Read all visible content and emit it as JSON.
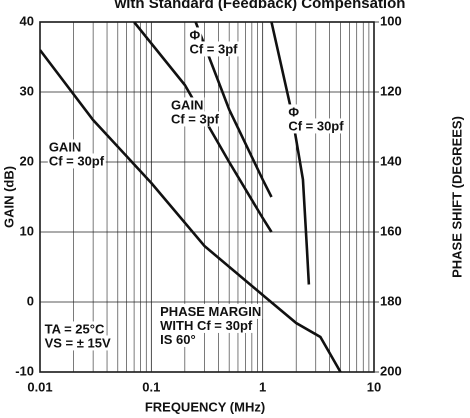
{
  "chart_data": {
    "type": "line",
    "title": "with Standard (Feedback) Compensation",
    "x_label": "FREQUENCY (MHz)",
    "y_label": "GAIN (dB)",
    "y2_label": "PHASE SHIFT (DEGREES)",
    "log_x": true,
    "grid": true,
    "xlim": [
      0.01,
      10
    ],
    "xticks": [
      0.01,
      0.1,
      1,
      10
    ],
    "xminor_ticks": [
      0.02,
      0.03,
      0.04,
      0.05,
      0.06,
      0.07,
      0.08,
      0.09,
      0.2,
      0.3,
      0.4,
      0.5,
      0.6,
      0.7,
      0.8,
      0.9,
      2,
      3,
      4,
      5,
      6,
      7,
      8,
      9
    ],
    "ylim": [
      -10,
      40
    ],
    "yticks": [
      -10,
      0,
      10,
      20,
      30,
      40
    ],
    "y2lim": [
      200,
      100
    ],
    "y2ticks": [
      100,
      120,
      140,
      160,
      180,
      200
    ],
    "series": [
      {
        "name": "GAIN Cf = 30pf",
        "color": "#111111",
        "x": [
          0.01,
          0.03,
          0.1,
          0.3,
          1,
          2,
          3.3,
          5
        ],
        "values": [
          36,
          26,
          17,
          8,
          1,
          -3,
          -5,
          -10
        ]
      },
      {
        "name": "GAIN Cf = 3pf",
        "color": "#111111",
        "x": [
          0.07,
          0.2,
          0.5,
          1,
          1.2
        ],
        "values": [
          40,
          31,
          20,
          12,
          10
        ]
      },
      {
        "name": "Φ Cf = 3pf",
        "color": "#111111",
        "axis": "y2",
        "x": [
          0.25,
          0.5,
          1,
          1.2
        ],
        "values": [
          100,
          125,
          145,
          150
        ]
      },
      {
        "name": "Φ Cf = 30pf",
        "color": "#111111",
        "axis": "y2",
        "x": [
          1.2,
          1.8,
          2.3,
          2.5,
          2.6
        ],
        "values": [
          100,
          125,
          145,
          165,
          175
        ]
      }
    ],
    "annotations": [
      {
        "lines": [
          "GAIN",
          "Cf = 30pf"
        ],
        "x": 0.012,
        "y": 22
      },
      {
        "lines": [
          "GAIN",
          "Cf = 3pf"
        ],
        "x": 0.15,
        "y": 28
      },
      {
        "lines": [
          "Φ",
          "Cf = 3pf"
        ],
        "x": 0.22,
        "y": 38
      },
      {
        "lines": [
          "Φ",
          "Cf = 30pf"
        ],
        "x": 1.7,
        "y": 27
      },
      {
        "lines": [
          "TA = 25°C",
          "VS = ± 15V"
        ],
        "x": 0.011,
        "y": -4
      },
      {
        "lines": [
          "PHASE MARGIN",
          "WITH Cf = 30pf",
          "IS 60°"
        ],
        "x": 0.12,
        "y": -1.5
      }
    ]
  }
}
